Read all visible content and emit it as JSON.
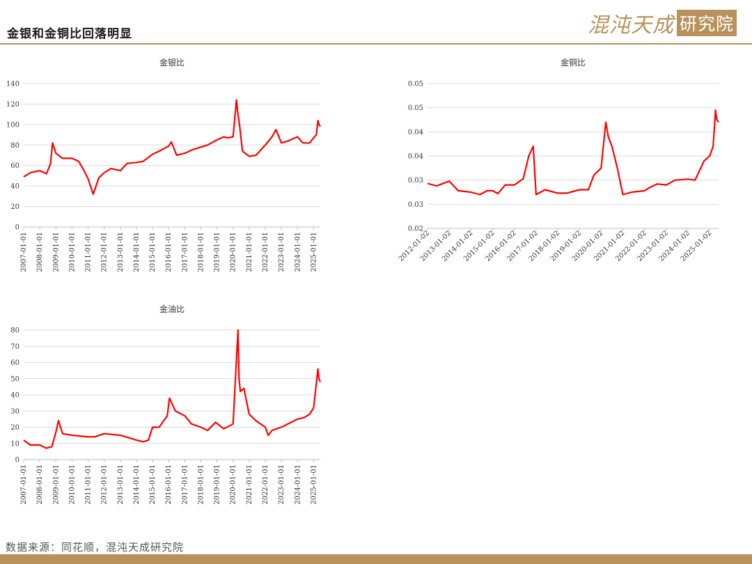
{
  "header": {
    "title": "金银和金铜比回落明显",
    "logo_script": "混沌天成",
    "logo_box": "研究院",
    "accent": "#b8915d"
  },
  "footer": {
    "source": "数据来源：同花顺，混沌天成研究院"
  },
  "chart_data": [
    {
      "id": "gold-silver",
      "type": "line",
      "title": "金银比",
      "ylim": [
        0,
        140
      ],
      "yticks": [
        "0",
        "20",
        "40",
        "60",
        "80",
        "100",
        "120",
        "140"
      ],
      "xticks": [
        "2007-01-01",
        "2008-01-01",
        "2009-01-01",
        "2010-01-01",
        "2011-01-01",
        "2012-01-01",
        "2013-01-01",
        "2014-01-01",
        "2015-01-01",
        "2016-01-01",
        "2017-01-01",
        "2018-01-01",
        "2019-01-01",
        "2020-01-01",
        "2021-01-01",
        "2022-01-01",
        "2023-01-01",
        "2024-01-01",
        "2025-01-01"
      ],
      "xlim": [
        "2007-01-01",
        "2025-06-01"
      ],
      "color": "#ff0000",
      "grid": true,
      "series": [
        {
          "x": [
            "2007-01-01",
            "2007-06-01",
            "2008-01-01",
            "2008-06-01",
            "2008-09-01",
            "2008-10-15",
            "2009-01-01",
            "2009-06-01",
            "2010-01-01",
            "2010-06-01",
            "2010-10-01",
            "2011-01-01",
            "2011-04-25",
            "2011-09-01",
            "2012-01-01",
            "2012-06-01",
            "2013-01-01",
            "2013-06-01",
            "2014-01-01",
            "2014-06-01",
            "2015-01-01",
            "2015-06-01",
            "2016-01-01",
            "2016-03-01",
            "2016-07-01",
            "2017-01-01",
            "2017-06-01",
            "2018-01-01",
            "2018-06-01",
            "2019-01-01",
            "2019-06-01",
            "2019-09-01",
            "2020-01-01",
            "2020-03-18",
            "2020-04-15",
            "2020-06-01",
            "2020-08-01",
            "2021-01-01",
            "2021-06-01",
            "2022-01-01",
            "2022-06-01",
            "2022-09-01",
            "2023-01-01",
            "2023-06-01",
            "2024-01-01",
            "2024-05-01",
            "2024-10-01",
            "2025-01-01",
            "2025-03-01",
            "2025-04-08",
            "2025-05-01",
            "2025-06-01"
          ],
          "y": [
            49,
            53,
            55,
            52,
            62,
            82,
            72,
            67,
            67,
            64,
            55,
            47,
            32,
            48,
            53,
            57,
            55,
            62,
            63,
            64,
            71,
            74,
            79,
            83,
            70,
            72,
            75,
            78,
            80,
            85,
            88,
            87,
            88,
            124,
            112,
            98,
            74,
            69,
            70,
            80,
            88,
            95,
            82,
            84,
            88,
            82,
            82,
            87,
            90,
            104,
            100,
            98
          ]
        }
      ]
    },
    {
      "id": "gold-copper",
      "type": "line",
      "title": "金铜比",
      "ylim": [
        0.02,
        0.05
      ],
      "yticks": [
        "0.02",
        "0.03",
        "0.03",
        "0.04",
        "0.04",
        "0.05",
        "0.05"
      ],
      "xticks": [
        "2012-01-02",
        "2013-01-02",
        "2014-01-02",
        "2015-01-02",
        "2016-01-02",
        "2017-01-02",
        "2018-01-02",
        "2019-01-02",
        "2020-01-02",
        "2021-01-02",
        "2022-01-02",
        "2023-01-02",
        "2024-01-02",
        "2025-01-02"
      ],
      "xlim": [
        "2012-01-02",
        "2025-06-01"
      ],
      "color": "#ff0000",
      "grid": true,
      "series": [
        {
          "x": [
            "2012-01-02",
            "2012-06-01",
            "2013-01-02",
            "2013-06-01",
            "2014-01-02",
            "2014-06-01",
            "2014-10-01",
            "2015-01-02",
            "2015-04-01",
            "2015-08-01",
            "2016-01-02",
            "2016-06-01",
            "2016-09-01",
            "2016-11-15",
            "2017-01-02",
            "2017-06-01",
            "2018-01-02",
            "2018-06-01",
            "2019-01-02",
            "2019-06-01",
            "2019-09-01",
            "2020-01-02",
            "2020-03-20",
            "2020-05-01",
            "2020-07-01",
            "2020-10-01",
            "2021-01-02",
            "2021-06-01",
            "2022-01-02",
            "2022-04-01",
            "2022-08-01",
            "2023-01-02",
            "2023-06-01",
            "2024-01-02",
            "2024-05-01",
            "2024-10-01",
            "2025-01-02",
            "2025-03-01",
            "2025-04-10",
            "2025-05-01",
            "2025-06-01"
          ],
          "y": [
            0.0293,
            0.0288,
            0.0298,
            0.0278,
            0.0275,
            0.027,
            0.0278,
            0.0278,
            0.0272,
            0.029,
            0.029,
            0.0303,
            0.035,
            0.037,
            0.027,
            0.028,
            0.0273,
            0.0273,
            0.028,
            0.028,
            0.031,
            0.0325,
            0.042,
            0.039,
            0.037,
            0.0325,
            0.027,
            0.0275,
            0.0278,
            0.0285,
            0.0292,
            0.029,
            0.03,
            0.0302,
            0.03,
            0.034,
            0.035,
            0.037,
            0.0445,
            0.0425,
            0.042
          ]
        }
      ]
    },
    {
      "id": "gold-oil",
      "type": "line",
      "title": "金油比",
      "ylim": [
        0,
        80
      ],
      "yticks": [
        "0",
        "10",
        "20",
        "30",
        "40",
        "50",
        "60",
        "70",
        "80"
      ],
      "xticks": [
        "2007-01-01",
        "2008-01-01",
        "2009-01-01",
        "2010-01-01",
        "2011-01-01",
        "2012-01-01",
        "2013-01-01",
        "2014-01-01",
        "2015-01-01",
        "2016-01-01",
        "2017-01-01",
        "2018-01-01",
        "2019-01-01",
        "2020-01-01",
        "2021-01-01",
        "2022-01-01",
        "2023-01-01",
        "2024-01-01",
        "2025-01-01"
      ],
      "xlim": [
        "2007-01-01",
        "2025-06-01"
      ],
      "color": "#ff0000",
      "grid": true,
      "series": [
        {
          "x": [
            "2007-01-01",
            "2007-06-01",
            "2008-01-01",
            "2008-06-01",
            "2008-10-01",
            "2009-01-01",
            "2009-03-01",
            "2009-06-01",
            "2010-01-01",
            "2011-01-01",
            "2011-06-01",
            "2012-01-01",
            "2013-01-01",
            "2014-01-01",
            "2014-06-01",
            "2014-10-01",
            "2015-01-01",
            "2015-06-01",
            "2015-12-01",
            "2016-01-20",
            "2016-06-01",
            "2017-01-01",
            "2017-06-01",
            "2018-01-01",
            "2018-06-01",
            "2018-12-01",
            "2019-06-01",
            "2020-01-01",
            "2020-04-21",
            "2020-05-15",
            "2020-06-15",
            "2020-09-01",
            "2021-01-01",
            "2021-06-01",
            "2022-01-01",
            "2022-03-08",
            "2022-06-01",
            "2023-01-01",
            "2023-06-01",
            "2024-01-01",
            "2024-06-01",
            "2024-10-01",
            "2025-01-01",
            "2025-04-08",
            "2025-05-01",
            "2025-06-01"
          ],
          "y": [
            12,
            9,
            9,
            7,
            8,
            17,
            24,
            16,
            15,
            14,
            14,
            16,
            15,
            12,
            11,
            12,
            20,
            20,
            27,
            38,
            30,
            27,
            22,
            20,
            18,
            23,
            19,
            22,
            80,
            50,
            42,
            44,
            28,
            24,
            20,
            15,
            18,
            20,
            22,
            25,
            26,
            28,
            32,
            56,
            50,
            48
          ]
        }
      ]
    }
  ]
}
